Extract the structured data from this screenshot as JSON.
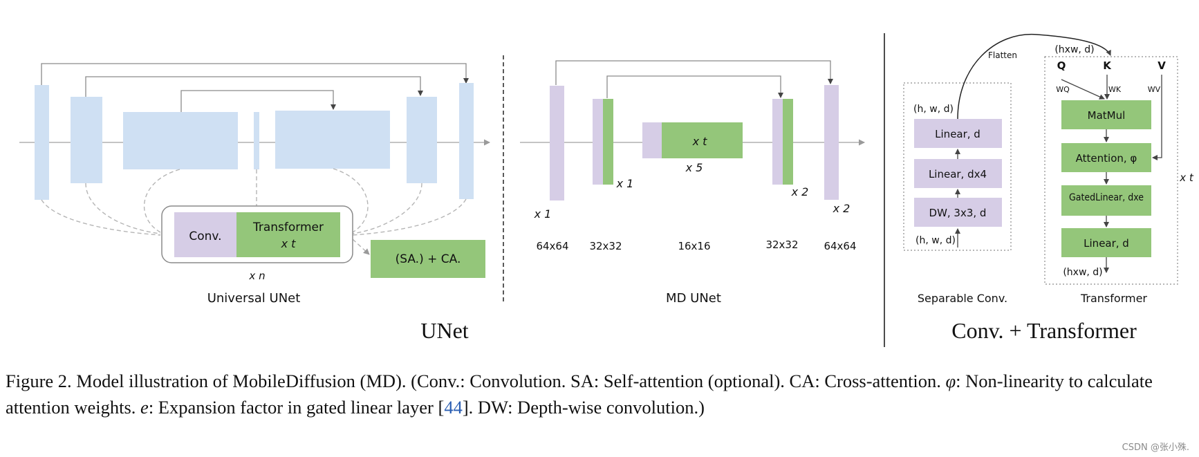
{
  "colors": {
    "light_blue": "#cfe0f3",
    "lavender": "#d6cde6",
    "green": "#94c67a",
    "line": "#8a8a8a",
    "dashed": "#b5b5b5",
    "ref": "#2b5fb3"
  },
  "universal_unet": {
    "title": "Universal UNet",
    "conv_label": "Conv.",
    "transformer_label": "Transformer",
    "transformer_repeat": "x t",
    "block_repeat": "x n",
    "attention_label": "(SA.) + CA."
  },
  "md_unet": {
    "title": "MD UNet",
    "mid_repeat": "x t",
    "mid_count": "x 5",
    "stage_counts": [
      "x 1",
      "x 1",
      "x 2",
      "x 2"
    ],
    "resolutions": [
      "64x64",
      "32x32",
      "16x16",
      "32x32",
      "64x64"
    ]
  },
  "separable_conv": {
    "title": "Separable Conv.",
    "top_shape": "(h, w, d)",
    "bottom_shape": "(h, w, d)",
    "layers": [
      "Linear, d",
      "Linear,  dx4",
      "DW, 3x3, d"
    ],
    "flatten_label": "Flatten"
  },
  "transformer": {
    "title": "Transformer",
    "input_shape": "(hxw, d)",
    "output_shape": "(hxw, d)",
    "q": "Q",
    "k": "K",
    "v": "V",
    "wq": "WQ",
    "wk": "WK",
    "wv": "WV",
    "layers": [
      "MatMul",
      "Attention, φ",
      "GatedLinear, dxe",
      "Linear, d"
    ],
    "repeat": "x t"
  },
  "section_titles": {
    "left": "UNet",
    "right": "Conv. + Transformer"
  },
  "caption": {
    "p1": "Figure 2.  Model illustration of MobileDiffusion (MD). (Conv.: Convolution.  SA: Self-attention (optional).  CA: Cross-attention.  ",
    "phi": "φ",
    "p2": ": Non-linearity to calculate attention weights. ",
    "e": "e",
    "p3": ": Expansion factor in gated linear layer [",
    "ref": "44",
    "p4": "]. DW: Depth-wise convolution.)"
  },
  "watermark": "CSDN @张小殊."
}
